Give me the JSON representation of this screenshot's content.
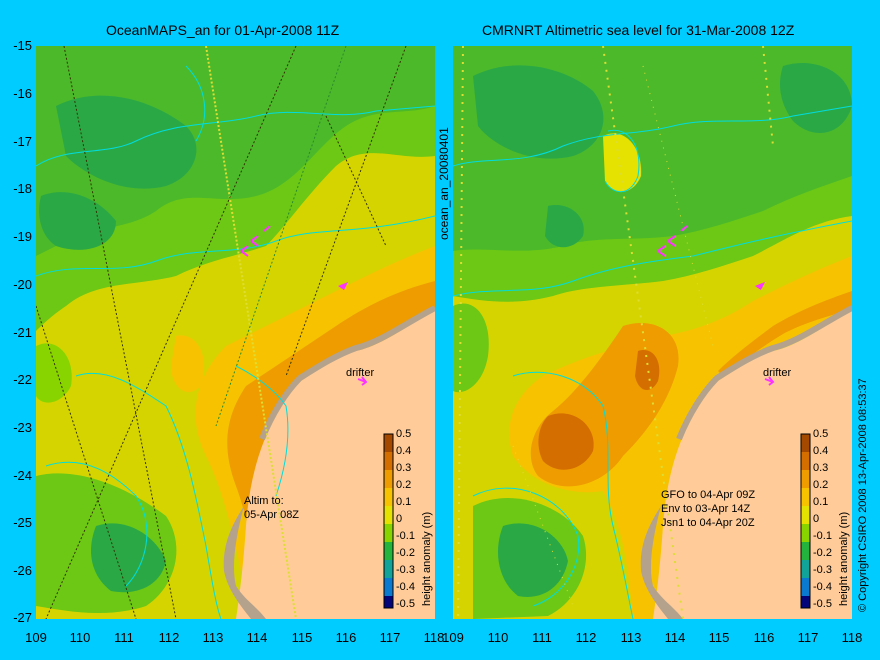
{
  "left_panel": {
    "title": "OceanMAPS_an for 01-Apr-2008 11Z",
    "altim_line1": "Altim to:",
    "altim_line2": "05-Apr 08Z",
    "drifter_label": "drifter"
  },
  "right_panel": {
    "title": "CMRNRT Altimetric sea level  for 31-Mar-2008 12Z",
    "gfo": "GFO to 04-Apr 09Z",
    "env": "Env to 03-Apr 14Z",
    "jsn": "Jsn1 to 04-Apr 20Z",
    "drifter_label": "drifter"
  },
  "side_label": "ocean_an_20080401",
  "copyright": "© Copyright CSIRO 2008   13-Apr-2008 08:53:37",
  "axes": {
    "y_ticks": [
      "-15",
      "-16",
      "-17",
      "-18",
      "-19",
      "-20",
      "-21",
      "-22",
      "-23",
      "-24",
      "-25",
      "-26",
      "-27"
    ],
    "x_ticks": [
      "109",
      "110",
      "111",
      "112",
      "113",
      "114",
      "115",
      "116",
      "117",
      "118"
    ]
  },
  "colorbar": {
    "label": "height anomaly (m)",
    "ticks": [
      "0.5",
      "0.4",
      "0.3",
      "0.2",
      "0.1",
      "0",
      "-0.1",
      "-0.2",
      "-0.3",
      "-0.4",
      "-0.5"
    ],
    "colors": [
      "#a34a00",
      "#d46e00",
      "#ee9c00",
      "#f7c300",
      "#e5e100",
      "#88d400",
      "#22b43c",
      "#11a39a",
      "#0a7ad0",
      "#0a3fb4",
      "#05057a"
    ]
  },
  "colors": {
    "background": "#00ccff",
    "land": "#ffcc99",
    "coast": "#b5a28c",
    "contour": "#00dddd",
    "drifter": "#ff33ff"
  }
}
